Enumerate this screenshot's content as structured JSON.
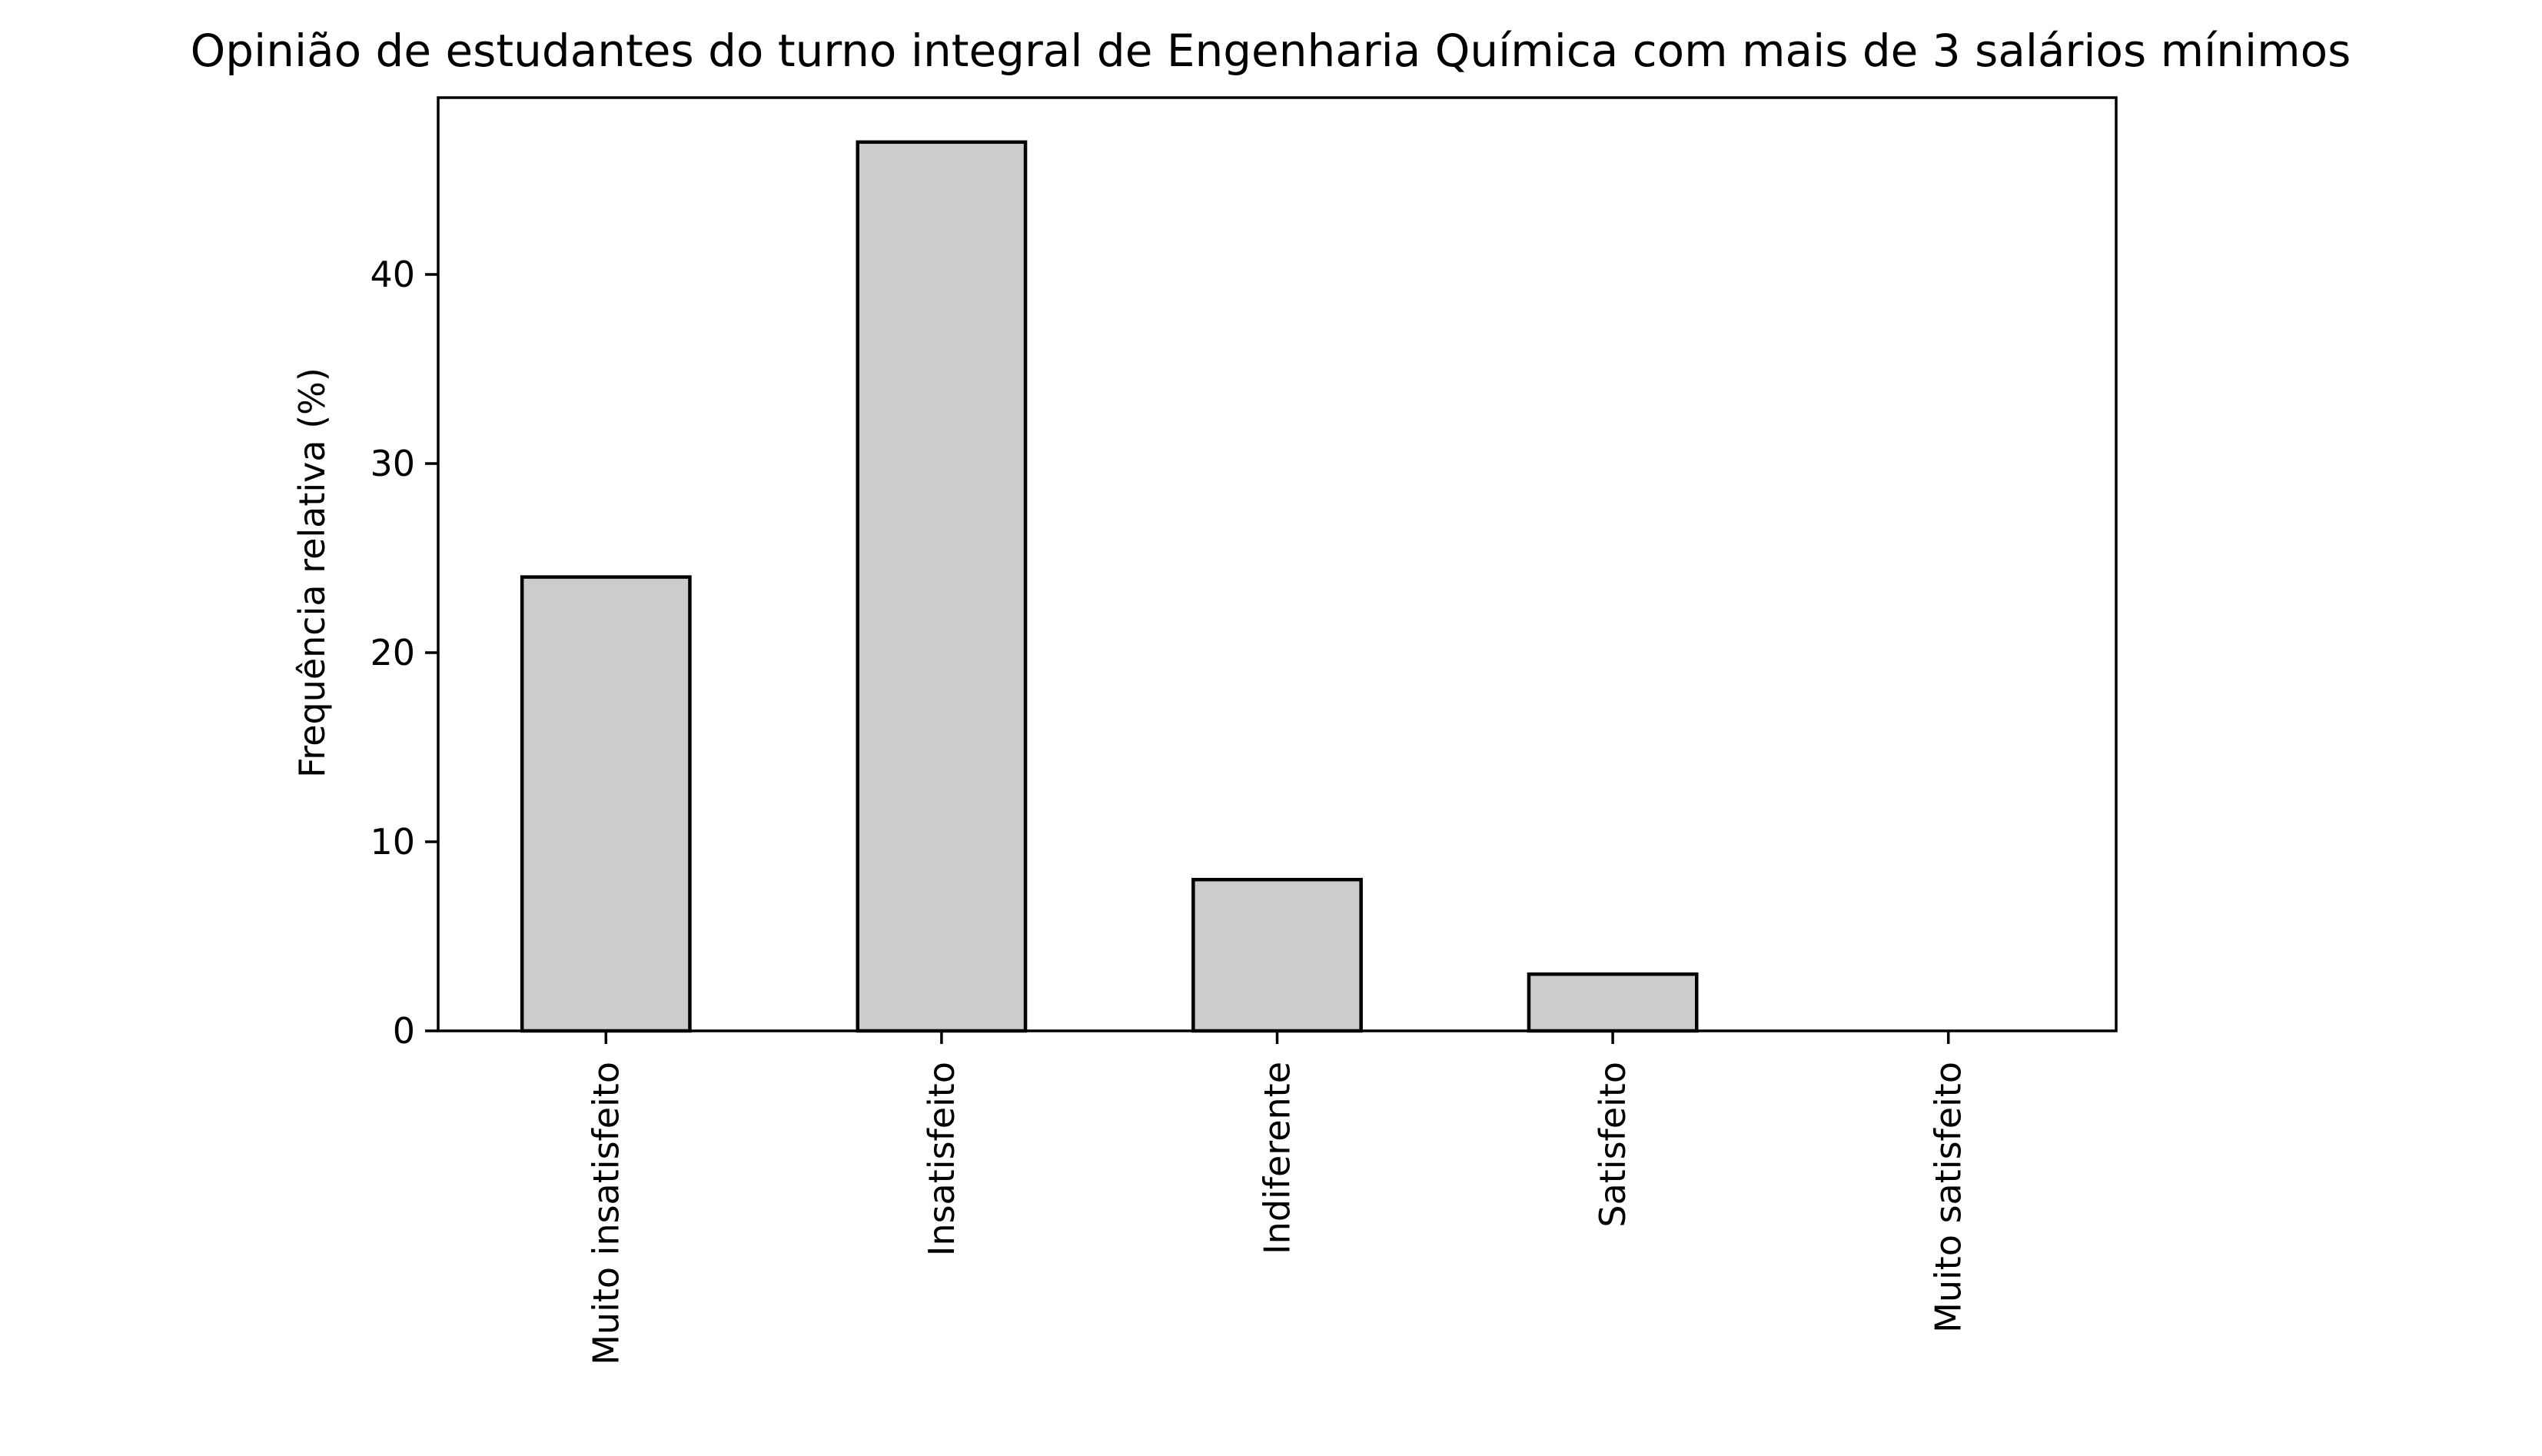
{
  "chart_data": {
    "type": "bar",
    "title": "Opinião de estudantes do turno integral de Engenharia Química com mais de 3 salários mínimos",
    "xlabel": "",
    "ylabel": "Frequência relativa (%)",
    "categories": [
      "Muito insatisfeito",
      "Insatisfeito",
      "Indiferente",
      "Satisfeito",
      "Muito satisfeito"
    ],
    "values": [
      24,
      47,
      8,
      3,
      0
    ],
    "ylim": [
      0,
      49.35
    ],
    "yticks": [
      0,
      10,
      20,
      30,
      40
    ],
    "bar_color": "#cccccc",
    "edge_color": "#000000",
    "grid": false,
    "legend": "none"
  }
}
